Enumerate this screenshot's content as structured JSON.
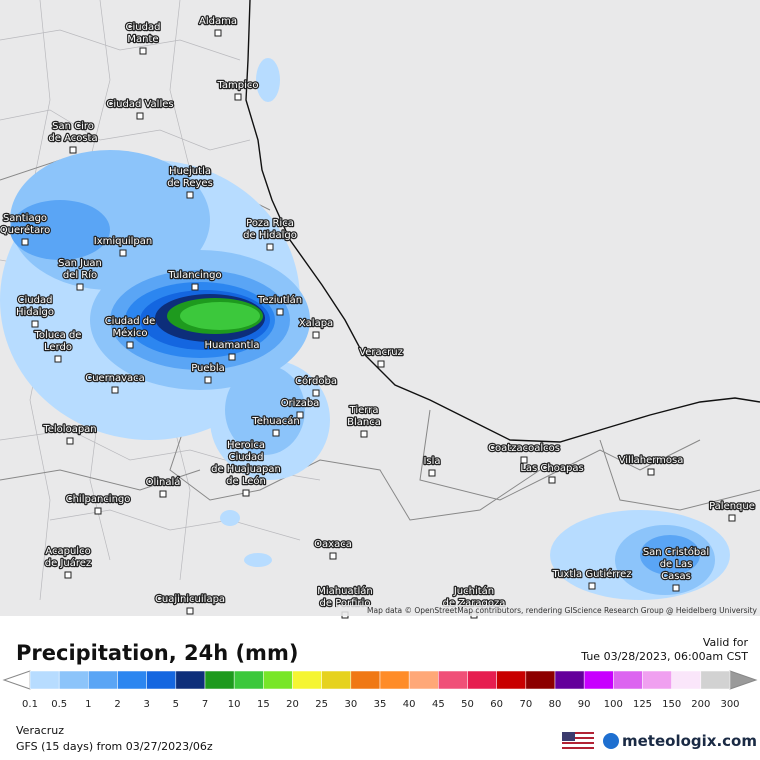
{
  "map": {
    "attribution": "Map data © OpenStreetMap contributors, rendering GIScience Research Group @ Heidelberg University",
    "cities": [
      [
        "Aldama"
      ],
      [
        "Ciudad",
        "Mante"
      ],
      [
        "Tampico"
      ],
      [
        "Ciudad Valles"
      ],
      [
        "San Ciro",
        "de Acosta"
      ],
      [
        "Huejutla",
        "de Reyes"
      ],
      [
        "Poza Rica",
        "de Hidalgo"
      ],
      [
        "Santiago",
        "Querétaro"
      ],
      [
        "Ixmiquilpan"
      ],
      [
        "San Juan",
        "del Río"
      ],
      [
        "Tulancingo"
      ],
      [
        "Ciudad",
        "Hidalgo"
      ],
      [
        "Teziutlán"
      ],
      [
        "Ciudad de",
        "México"
      ],
      [
        "Toluca de",
        "Lerdo"
      ],
      [
        "Xalapa"
      ],
      [
        "Huamantla"
      ],
      [
        "Veracruz"
      ],
      [
        "Puebla"
      ],
      [
        "Cuernavaca"
      ],
      [
        "Córdoba"
      ],
      [
        "Orizaba"
      ],
      [
        "Tierra",
        "Blanca"
      ],
      [
        "Tehuacán"
      ],
      [
        "Teloloapan"
      ],
      [
        "Heroica",
        "Ciudad",
        "de Huajuapan",
        "de León"
      ],
      [
        "Coatzacoalcos"
      ],
      [
        "Las Choapas"
      ],
      [
        "Isla"
      ],
      [
        "Villahermosa"
      ],
      [
        "Olinalá"
      ],
      [
        "Chilpancingo"
      ],
      [
        "Palenque"
      ],
      [
        "Oaxaca"
      ],
      [
        "Acapulco",
        "de Juárez"
      ],
      [
        "San Cristóbal",
        "de Las",
        "Casas"
      ],
      [
        "Tuxtla Gutiérrez"
      ],
      [
        "Miahuatlán",
        "de Porfirio"
      ],
      [
        "Juchitán",
        "de Zaragoza"
      ],
      [
        "Cuajinicuilapa"
      ]
    ]
  },
  "header": {
    "title": "Precipitation, 24h (mm)",
    "valid_label": "Valid for",
    "valid_time": "Tue 03/28/2023, 06:00am CST"
  },
  "legend": {
    "labels": [
      "0.1",
      "0.5",
      "1",
      "2",
      "3",
      "5",
      "7",
      "10",
      "15",
      "20",
      "25",
      "30",
      "35",
      "40",
      "45",
      "50",
      "60",
      "70",
      "80",
      "90",
      "100",
      "125",
      "150",
      "200",
      "300"
    ],
    "colors": [
      "#b7dcff",
      "#8cc4fa",
      "#5aa5f5",
      "#2c86f0",
      "#1466e0",
      "#0d2e7a",
      "#1e9a1e",
      "#3cc83c",
      "#78e628",
      "#f5f532",
      "#e6d21e",
      "#f07814",
      "#ff8c28",
      "#ffa878",
      "#f05078",
      "#e61e50",
      "#c80000",
      "#8c0000",
      "#64009b",
      "#c800ff",
      "#dc64f0",
      "#f0a0f0",
      "#fae6fa",
      "#d2d2d2"
    ]
  },
  "footer": {
    "region": "Veracruz",
    "model": "GFS (15 days) from  03/27/2023/06z",
    "brand": "meteologix.com"
  }
}
